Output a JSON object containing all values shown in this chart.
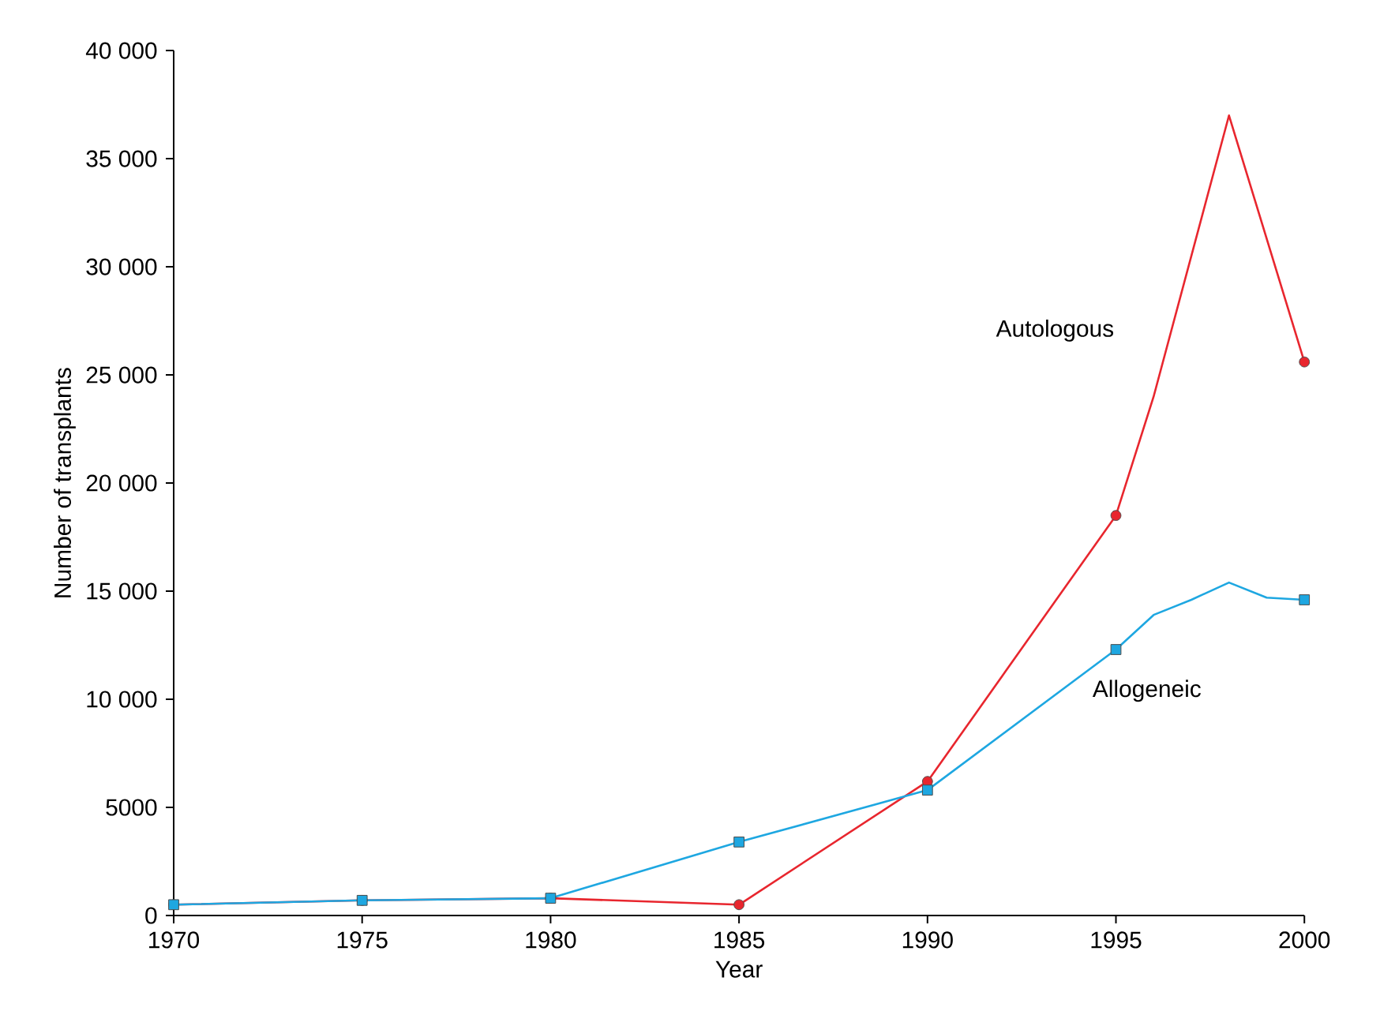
{
  "chart_data": {
    "type": "line",
    "xlabel": "Year",
    "ylabel": "Number of transplants",
    "xlim": [
      1970,
      2000
    ],
    "ylim": [
      0,
      40000
    ],
    "xticks": [
      1970,
      1975,
      1980,
      1985,
      1990,
      1995,
      2000
    ],
    "yticks": [
      0,
      5000,
      {
        "value": 10000,
        "label": "10 000"
      },
      {
        "value": 15000,
        "label": "15 000"
      },
      {
        "value": 20000,
        "label": "20 000"
      },
      {
        "value": 25000,
        "label": "25 000"
      },
      {
        "value": 30000,
        "label": "30 000"
      },
      {
        "value": 35000,
        "label": "35 000"
      },
      {
        "value": 40000,
        "label": "40 000"
      }
    ],
    "grid": false,
    "series": [
      {
        "name": "Autologous",
        "color": "#e8262e",
        "marker": "circle",
        "x": [
          1970,
          1975,
          1980,
          1985,
          1990,
          1995,
          1996,
          1998,
          2000
        ],
        "values": [
          500,
          700,
          800,
          500,
          6200,
          18500,
          24000,
          37000,
          25600
        ]
      },
      {
        "name": "Allogeneic",
        "color": "#1ea7e1",
        "marker": "square",
        "x": [
          1970,
          1975,
          1980,
          1985,
          1990,
          1995,
          1996,
          1997,
          1998,
          1999,
          2000
        ],
        "values": [
          500,
          700,
          800,
          3400,
          5800,
          12300,
          13900,
          14600,
          15400,
          14700,
          14600
        ]
      }
    ]
  }
}
